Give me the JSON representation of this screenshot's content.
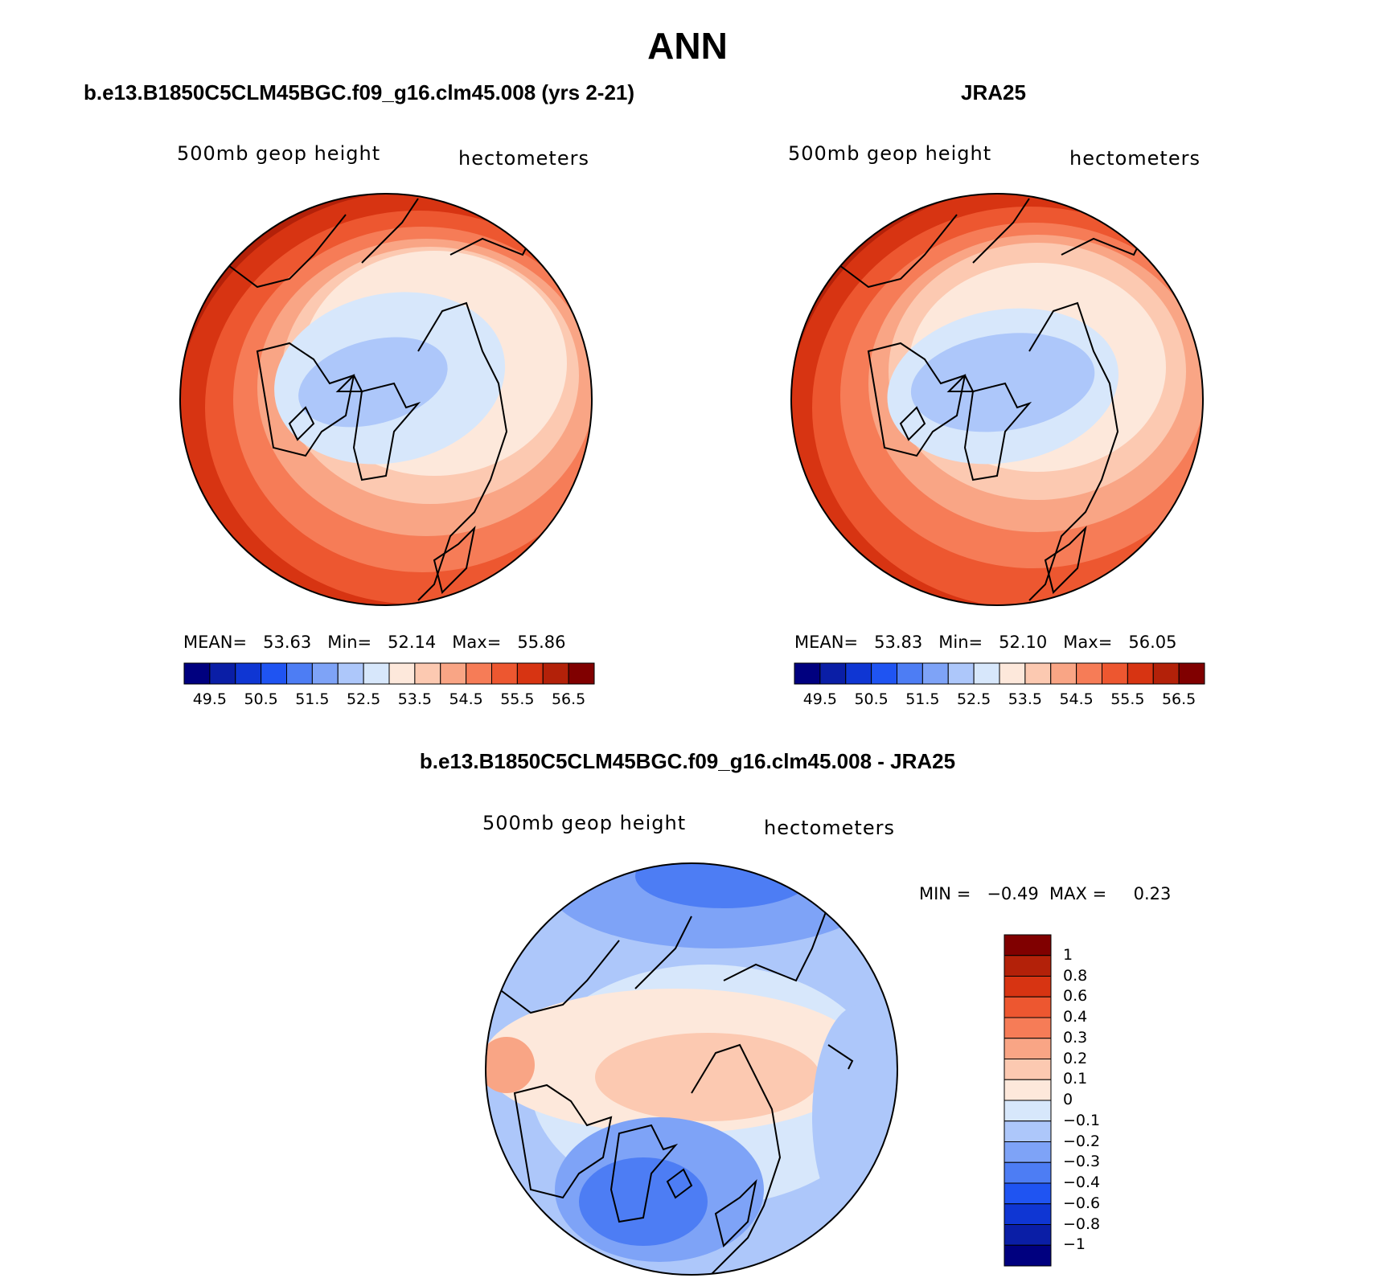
{
  "page_title": "ANN",
  "colors": {
    "seq": [
      "#00007f",
      "#0a1ea6",
      "#0f36d3",
      "#1f54f2",
      "#4d7df4",
      "#7ea3f7",
      "#adc7fa",
      "#d7e7fb",
      "#fde8db",
      "#fcc9b1",
      "#f9a585",
      "#f67c57",
      "#ed5730",
      "#d73412",
      "#b32109",
      "#800000"
    ],
    "diff": [
      "#00007f",
      "#0a1ea6",
      "#0f36d3",
      "#1f54f2",
      "#4d7df4",
      "#7ea3f7",
      "#adc7fa",
      "#d7e7fb",
      "#fde8db",
      "#fcc9b1",
      "#f9a585",
      "#f67c57",
      "#ed5730",
      "#d73412",
      "#b32109",
      "#800000"
    ]
  },
  "panels": {
    "model": {
      "title": "b.e13.B1850C5CLM45BGC.f09_g16.clm45.008 (yrs 2-21)",
      "var": "500mb geop height",
      "units": "hectometers",
      "stats": {
        "mean_label": "MEAN=",
        "mean": "53.63",
        "min_label": "Min=",
        "min": "52.14",
        "max_label": "Max=",
        "max": "55.86"
      }
    },
    "obs": {
      "title": "JRA25",
      "var": "500mb geop height",
      "units": "hectometers",
      "stats": {
        "mean_label": "MEAN=",
        "mean": "53.83",
        "min_label": "Min=",
        "min": "52.10",
        "max_label": "Max=",
        "max": "56.05"
      }
    },
    "diff": {
      "title": "b.e13.B1850C5CLM45BGC.f09_g16.clm45.008 - JRA25",
      "var": "500mb geop height",
      "units": "hectometers",
      "stats": {
        "min_label": "MIN =",
        "min": "−0.49",
        "max_label": "MAX =",
        "max": "0.23"
      }
    }
  },
  "chart_data": [
    {
      "type": "heatmap",
      "title": "b.e13.B1850C5CLM45BGC.f09_g16.clm45.008 (yrs 2-21)",
      "variable": "500mb geop height",
      "units": "hectometers",
      "projection": "north polar stereographic",
      "mean": 53.63,
      "min": 52.14,
      "max": 55.86,
      "levels": [
        49.5,
        50,
        50.5,
        51,
        51.5,
        52,
        52.5,
        53,
        53.5,
        54,
        54.5,
        55,
        55.5,
        56,
        56.5
      ],
      "colorbar_tick_labels": [
        "49.5",
        "50.5",
        "51.5",
        "52.5",
        "53.5",
        "54.5",
        "55.5",
        "56.5"
      ]
    },
    {
      "type": "heatmap",
      "title": "JRA25",
      "variable": "500mb geop height",
      "units": "hectometers",
      "projection": "north polar stereographic",
      "mean": 53.83,
      "min": 52.1,
      "max": 56.05,
      "levels": [
        49.5,
        50,
        50.5,
        51,
        51.5,
        52,
        52.5,
        53,
        53.5,
        54,
        54.5,
        55,
        55.5,
        56,
        56.5
      ],
      "colorbar_tick_labels": [
        "49.5",
        "50.5",
        "51.5",
        "52.5",
        "53.5",
        "54.5",
        "55.5",
        "56.5"
      ]
    },
    {
      "type": "heatmap",
      "title": "b.e13.B1850C5CLM45BGC.f09_g16.clm45.008 - JRA25",
      "variable": "500mb geop height",
      "units": "hectometers",
      "projection": "north polar stereographic",
      "min": -0.49,
      "max": 0.23,
      "levels": [
        -1,
        -0.8,
        -0.6,
        -0.4,
        -0.3,
        -0.2,
        -0.1,
        0,
        0.1,
        0.2,
        0.3,
        0.4,
        0.6,
        0.8,
        1
      ],
      "colorbar_tick_labels": [
        "1",
        "0.8",
        "0.6",
        "0.4",
        "0.3",
        "0.2",
        "0.1",
        "0",
        "−0.1",
        "−0.2",
        "−0.3",
        "−0.4",
        "−0.6",
        "−0.8",
        "−1"
      ]
    }
  ]
}
